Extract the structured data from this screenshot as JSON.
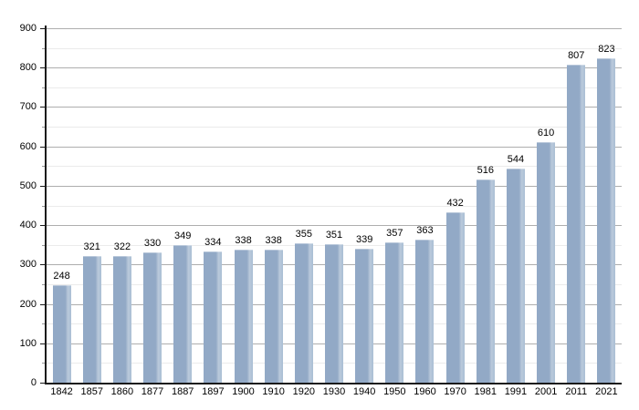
{
  "chart_data": {
    "type": "bar",
    "title": "",
    "xlabel": "",
    "ylabel": "",
    "categories": [
      "1842",
      "1857",
      "1860",
      "1877",
      "1887",
      "1897",
      "1900",
      "1910",
      "1920",
      "1930",
      "1940",
      "1950",
      "1960",
      "1970",
      "1981",
      "1991",
      "2001",
      "2011",
      "2021"
    ],
    "values": [
      248,
      321,
      322,
      330,
      349,
      334,
      338,
      338,
      355,
      351,
      339,
      357,
      363,
      432,
      516,
      544,
      610,
      807,
      823
    ],
    "y_tick_labels": [
      "0",
      "100",
      "200",
      "300",
      "400",
      "500",
      "600",
      "700",
      "800",
      "900"
    ],
    "ylim": [
      0,
      900
    ],
    "ytick_step": 100,
    "minor_tick_step": 50,
    "grid": true,
    "legend": "none",
    "value_labels_shown": true,
    "colors": {
      "bar": "#92a9c6",
      "bar_highlight": "#bac9db",
      "bar_highlight_edge": "#aabfd4",
      "major_grid": "#aeaeae",
      "minor_grid": "#ebebeb",
      "axis": "#1a1a1a",
      "text": "#000000",
      "background": "#ffffff"
    }
  }
}
